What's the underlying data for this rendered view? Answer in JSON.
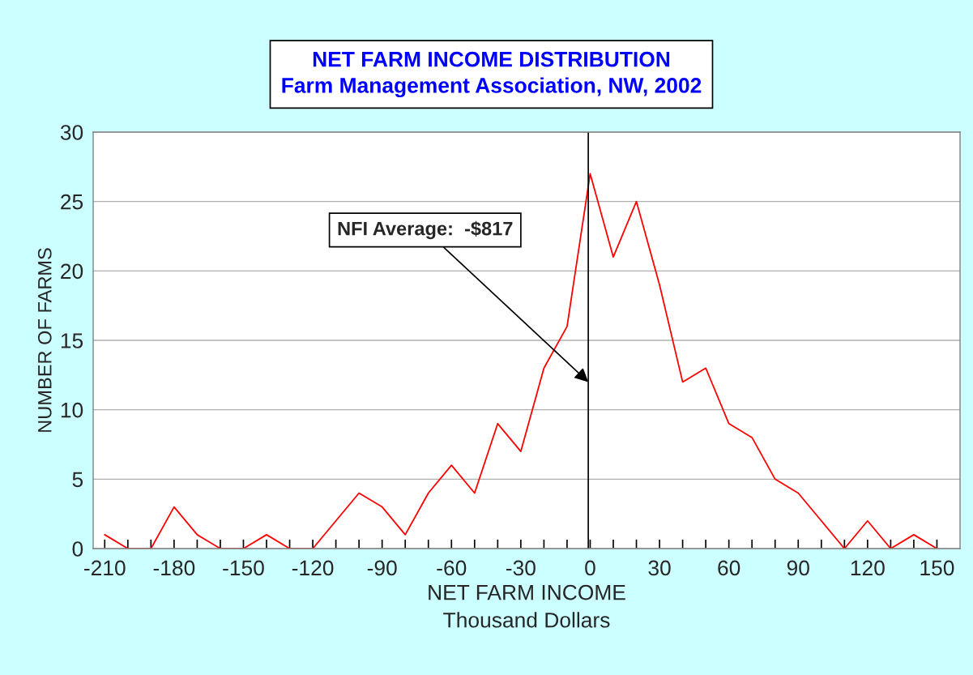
{
  "chart_data": {
    "type": "line",
    "title": "NET FARM INCOME DISTRIBUTION",
    "subtitle": "Farm Management Association, NW, 2002",
    "xlabel": "NET FARM INCOME\nThousand Dollars",
    "ylabel": "NUMBER OF FARMS",
    "x": [
      -210,
      -200,
      -190,
      -180,
      -170,
      -160,
      -150,
      -140,
      -130,
      -120,
      -110,
      -100,
      -90,
      -80,
      -70,
      -60,
      -50,
      -40,
      -30,
      -20,
      -10,
      0,
      10,
      20,
      30,
      40,
      50,
      60,
      70,
      80,
      90,
      100,
      110,
      120,
      130,
      140,
      150
    ],
    "series": [
      {
        "color": "#ff0000",
        "values": [
          1,
          0,
          0,
          3,
          1,
          0,
          0,
          1,
          0,
          0,
          2,
          4,
          3,
          1,
          4,
          6,
          4,
          9,
          7,
          13,
          16,
          27,
          21,
          25,
          19,
          12,
          13,
          9,
          8,
          5,
          4,
          2,
          0,
          2,
          0,
          1,
          0
        ]
      }
    ],
    "xlim": [
      -215,
      160
    ],
    "ylim": [
      0,
      30
    ],
    "xticks": [
      -210,
      {
        "value": -200,
        "label": null
      },
      {
        "value": -190,
        "label": null
      },
      -180,
      {
        "value": -170,
        "label": null
      },
      {
        "value": -160,
        "label": null
      },
      -150,
      {
        "value": -140,
        "label": null
      },
      {
        "value": -130,
        "label": null
      },
      -120,
      {
        "value": -110,
        "label": null
      },
      {
        "value": -100,
        "label": null
      },
      -90,
      {
        "value": -80,
        "label": null
      },
      {
        "value": -70,
        "label": null
      },
      -60,
      {
        "value": -50,
        "label": null
      },
      {
        "value": -40,
        "label": null
      },
      -30,
      {
        "value": -20,
        "label": null
      },
      {
        "value": -10,
        "label": null
      },
      0,
      {
        "value": 10,
        "label": null
      },
      {
        "value": 20,
        "label": null
      },
      30,
      {
        "value": 40,
        "label": null
      },
      {
        "value": 50,
        "label": null
      },
      60,
      {
        "value": 70,
        "label": null
      },
      {
        "value": 80,
        "label": null
      },
      90,
      {
        "value": 100,
        "label": null
      },
      {
        "value": 110,
        "label": null
      },
      120,
      {
        "value": 130,
        "label": null
      },
      {
        "value": 140,
        "label": null
      },
      150
    ],
    "yticks": [
      0,
      5,
      10,
      15,
      20,
      25,
      30
    ],
    "ref_lines": [
      {
        "axis": "x",
        "value": -0.817,
        "color": "#000000"
      }
    ],
    "annotations": [
      {
        "text": "NFI Average:  -$817",
        "x": -0.817,
        "y": 12
      }
    ],
    "grid": "y",
    "legend": false,
    "marker": "none",
    "line_style": "solid"
  }
}
